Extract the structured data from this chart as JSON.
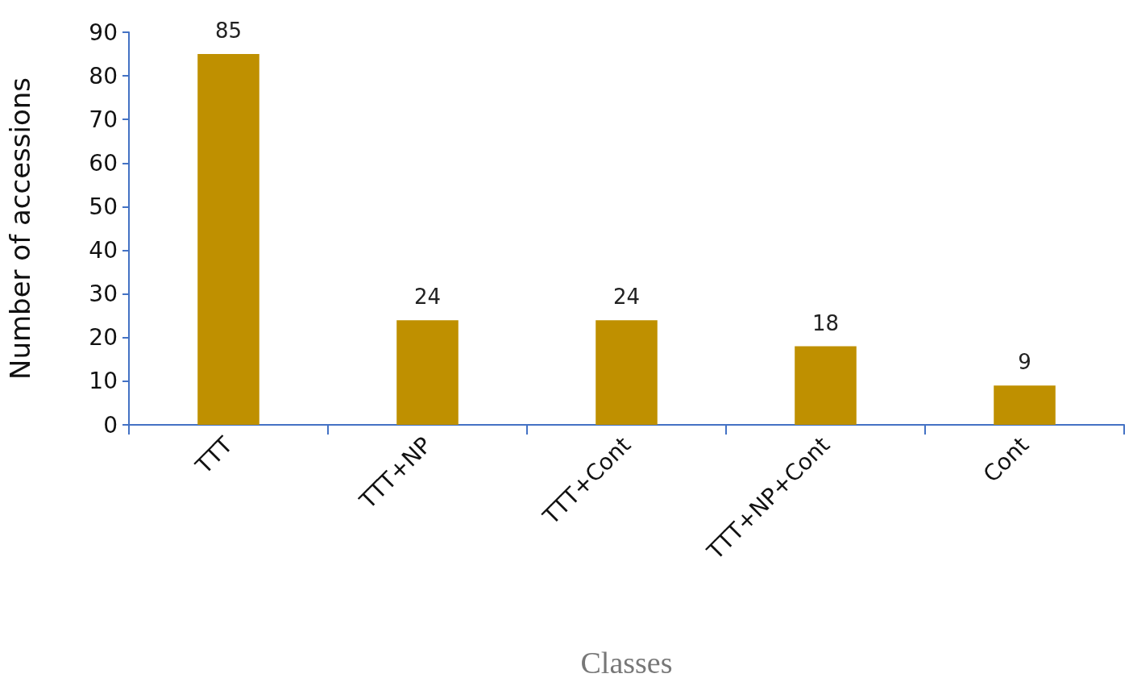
{
  "chart_data": {
    "type": "bar",
    "xlabel": "Classes",
    "ylabel": "Number of accessions",
    "categories": [
      "TTT",
      "TTT+NP",
      "TTT+Cont",
      "TTT+NP+Cont",
      "Cont"
    ],
    "values": [
      85,
      24,
      24,
      18,
      9
    ],
    "color": "#bf9000",
    "ylim": [
      0,
      90
    ],
    "yticks": [
      0,
      10,
      20,
      30,
      40,
      50,
      60,
      70,
      80,
      90
    ],
    "grid": false,
    "data_labels": true
  }
}
